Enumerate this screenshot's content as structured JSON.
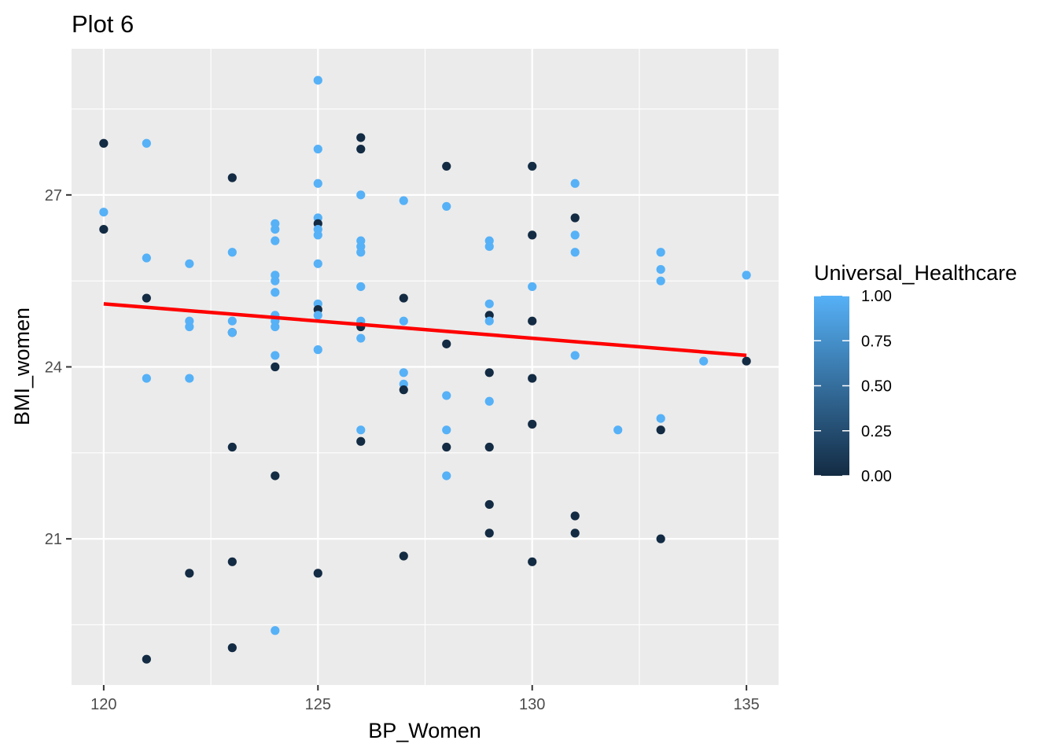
{
  "chart_data": {
    "type": "scatter",
    "title": "Plot 6",
    "xlabel": "BP_Women",
    "ylabel": "BMI_women",
    "xlim": [
      119.25,
      135.75
    ],
    "ylim": [
      18.45,
      29.55
    ],
    "x_ticks": [
      120,
      125,
      130,
      135
    ],
    "x_tick_labels": [
      "120",
      "125",
      "130",
      "135"
    ],
    "y_ticks": [
      21,
      24,
      27
    ],
    "y_tick_labels": [
      "21",
      "24",
      "27"
    ],
    "grid": true,
    "legend": {
      "title": "Universal_Healthcare",
      "position": "right",
      "type": "colorbar",
      "low_color": "#132b43",
      "high_color": "#56b1f7",
      "labels": [
        "1.00",
        "0.75",
        "0.50",
        "0.25",
        "0.00"
      ],
      "values": [
        1.0,
        0.75,
        0.5,
        0.25,
        0.0
      ]
    },
    "trend_line": {
      "color": "#ff0000",
      "x": [
        120,
        135
      ],
      "y": [
        25.1,
        24.2
      ]
    },
    "colors": {
      "panel": "#ebebeb",
      "grid": "#ffffff",
      "low": "#132b43",
      "high": "#56b1f7",
      "trend": "#ff0000"
    },
    "points": [
      {
        "x": 120,
        "y": 27.9,
        "c": 0
      },
      {
        "x": 120,
        "y": 26.4,
        "c": 0
      },
      {
        "x": 120,
        "y": 26.7,
        "c": 1
      },
      {
        "x": 121,
        "y": 27.9,
        "c": 1
      },
      {
        "x": 121,
        "y": 25.9,
        "c": 1
      },
      {
        "x": 121,
        "y": 25.2,
        "c": 0
      },
      {
        "x": 121,
        "y": 23.8,
        "c": 1
      },
      {
        "x": 121,
        "y": 18.9,
        "c": 0
      },
      {
        "x": 122,
        "y": 25.8,
        "c": 1
      },
      {
        "x": 122,
        "y": 24.8,
        "c": 1
      },
      {
        "x": 122,
        "y": 24.7,
        "c": 1
      },
      {
        "x": 122,
        "y": 23.8,
        "c": 1
      },
      {
        "x": 122,
        "y": 20.4,
        "c": 0
      },
      {
        "x": 123,
        "y": 27.3,
        "c": 0
      },
      {
        "x": 123,
        "y": 26.0,
        "c": 1
      },
      {
        "x": 123,
        "y": 24.8,
        "c": 1
      },
      {
        "x": 123,
        "y": 24.6,
        "c": 0
      },
      {
        "x": 123,
        "y": 24.6,
        "c": 1
      },
      {
        "x": 123,
        "y": 22.6,
        "c": 0
      },
      {
        "x": 123,
        "y": 20.6,
        "c": 0
      },
      {
        "x": 123,
        "y": 19.1,
        "c": 0
      },
      {
        "x": 124,
        "y": 26.5,
        "c": 1
      },
      {
        "x": 124,
        "y": 26.4,
        "c": 1
      },
      {
        "x": 124,
        "y": 26.2,
        "c": 1
      },
      {
        "x": 124,
        "y": 25.6,
        "c": 1
      },
      {
        "x": 124,
        "y": 25.5,
        "c": 1
      },
      {
        "x": 124,
        "y": 25.3,
        "c": 1
      },
      {
        "x": 124,
        "y": 24.9,
        "c": 1
      },
      {
        "x": 124,
        "y": 24.8,
        "c": 1
      },
      {
        "x": 124,
        "y": 24.7,
        "c": 1
      },
      {
        "x": 124,
        "y": 24.2,
        "c": 1
      },
      {
        "x": 124,
        "y": 24.0,
        "c": 0
      },
      {
        "x": 124,
        "y": 22.1,
        "c": 0
      },
      {
        "x": 124,
        "y": 19.4,
        "c": 1
      },
      {
        "x": 125,
        "y": 29.0,
        "c": 1
      },
      {
        "x": 125,
        "y": 27.8,
        "c": 1
      },
      {
        "x": 125,
        "y": 27.2,
        "c": 1
      },
      {
        "x": 125,
        "y": 26.6,
        "c": 1
      },
      {
        "x": 125,
        "y": 26.5,
        "c": 0
      },
      {
        "x": 125,
        "y": 26.4,
        "c": 1
      },
      {
        "x": 125,
        "y": 26.3,
        "c": 1
      },
      {
        "x": 125,
        "y": 25.8,
        "c": 1
      },
      {
        "x": 125,
        "y": 25.1,
        "c": 1
      },
      {
        "x": 125,
        "y": 25.0,
        "c": 0
      },
      {
        "x": 125,
        "y": 24.9,
        "c": 1
      },
      {
        "x": 125,
        "y": 24.3,
        "c": 1
      },
      {
        "x": 125,
        "y": 20.4,
        "c": 0
      },
      {
        "x": 126,
        "y": 28.0,
        "c": 0
      },
      {
        "x": 126,
        "y": 27.8,
        "c": 0
      },
      {
        "x": 126,
        "y": 27.0,
        "c": 1
      },
      {
        "x": 126,
        "y": 26.2,
        "c": 1
      },
      {
        "x": 126,
        "y": 26.1,
        "c": 1
      },
      {
        "x": 126,
        "y": 26.0,
        "c": 1
      },
      {
        "x": 126,
        "y": 25.4,
        "c": 1
      },
      {
        "x": 126,
        "y": 24.8,
        "c": 1
      },
      {
        "x": 126,
        "y": 24.7,
        "c": 0
      },
      {
        "x": 126,
        "y": 24.5,
        "c": 1
      },
      {
        "x": 126,
        "y": 22.9,
        "c": 1
      },
      {
        "x": 126,
        "y": 22.7,
        "c": 0
      },
      {
        "x": 127,
        "y": 26.9,
        "c": 1
      },
      {
        "x": 127,
        "y": 25.2,
        "c": 0
      },
      {
        "x": 127,
        "y": 24.8,
        "c": 1
      },
      {
        "x": 127,
        "y": 23.9,
        "c": 1
      },
      {
        "x": 127,
        "y": 23.7,
        "c": 1
      },
      {
        "x": 127,
        "y": 23.6,
        "c": 0
      },
      {
        "x": 127,
        "y": 20.7,
        "c": 0
      },
      {
        "x": 128,
        "y": 27.5,
        "c": 0
      },
      {
        "x": 128,
        "y": 26.8,
        "c": 1
      },
      {
        "x": 128,
        "y": 24.4,
        "c": 0
      },
      {
        "x": 128,
        "y": 23.5,
        "c": 1
      },
      {
        "x": 128,
        "y": 22.9,
        "c": 1
      },
      {
        "x": 128,
        "y": 22.6,
        "c": 0
      },
      {
        "x": 128,
        "y": 22.1,
        "c": 1
      },
      {
        "x": 129,
        "y": 26.2,
        "c": 1
      },
      {
        "x": 129,
        "y": 26.1,
        "c": 1
      },
      {
        "x": 129,
        "y": 25.1,
        "c": 1
      },
      {
        "x": 129,
        "y": 24.9,
        "c": 0
      },
      {
        "x": 129,
        "y": 24.8,
        "c": 1
      },
      {
        "x": 129,
        "y": 23.9,
        "c": 0
      },
      {
        "x": 129,
        "y": 23.4,
        "c": 1
      },
      {
        "x": 129,
        "y": 22.6,
        "c": 0
      },
      {
        "x": 129,
        "y": 21.6,
        "c": 0
      },
      {
        "x": 129,
        "y": 21.1,
        "c": 0
      },
      {
        "x": 130,
        "y": 27.5,
        "c": 0
      },
      {
        "x": 130,
        "y": 26.3,
        "c": 0
      },
      {
        "x": 130,
        "y": 25.4,
        "c": 1
      },
      {
        "x": 130,
        "y": 24.8,
        "c": 0
      },
      {
        "x": 130,
        "y": 23.8,
        "c": 0
      },
      {
        "x": 130,
        "y": 23.0,
        "c": 0
      },
      {
        "x": 130,
        "y": 20.6,
        "c": 0
      },
      {
        "x": 131,
        "y": 27.2,
        "c": 1
      },
      {
        "x": 131,
        "y": 26.6,
        "c": 0
      },
      {
        "x": 131,
        "y": 26.3,
        "c": 1
      },
      {
        "x": 131,
        "y": 26.0,
        "c": 1
      },
      {
        "x": 131,
        "y": 24.2,
        "c": 1
      },
      {
        "x": 131,
        "y": 21.4,
        "c": 0
      },
      {
        "x": 131,
        "y": 21.1,
        "c": 0
      },
      {
        "x": 132,
        "y": 22.9,
        "c": 1
      },
      {
        "x": 133,
        "y": 26.0,
        "c": 1
      },
      {
        "x": 133,
        "y": 25.7,
        "c": 1
      },
      {
        "x": 133,
        "y": 25.5,
        "c": 1
      },
      {
        "x": 133,
        "y": 23.1,
        "c": 1
      },
      {
        "x": 133,
        "y": 22.9,
        "c": 0
      },
      {
        "x": 133,
        "y": 21.0,
        "c": 0
      },
      {
        "x": 134,
        "y": 24.1,
        "c": 1
      },
      {
        "x": 135,
        "y": 25.6,
        "c": 1
      },
      {
        "x": 135,
        "y": 24.1,
        "c": 0
      }
    ]
  }
}
